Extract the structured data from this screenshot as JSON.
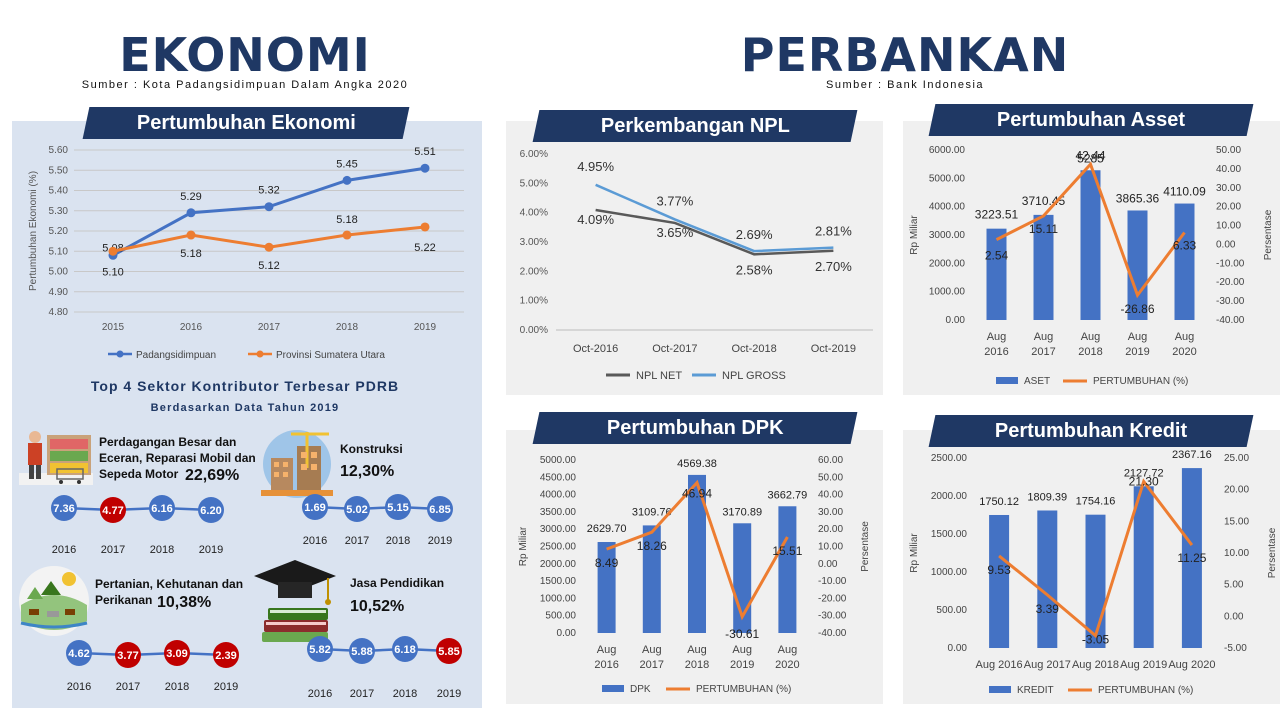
{
  "header": {
    "ekonomi_title": "EKONOMI",
    "ekonomi_source": "Sumber : Kota Padangsidimpuan Dalam Angka 2020",
    "perbankan_title": "PERBANKAN",
    "perbankan_source": "Sumber : Bank Indonesia"
  },
  "colors": {
    "dark_blue": "#1f3864",
    "bar_blue": "#4472c4",
    "orange": "#ed7d31",
    "red": "#c00000",
    "gray_line": "#595959",
    "light_blue_line": "#5b9bd5"
  },
  "pdrb": {
    "title": "Top 4 Sektor Kontributor Terbesar PDRB",
    "subtitle": "Berdasarkan Data Tahun 2019",
    "sectors": [
      {
        "name_lines": [
          "Perdagangan Besar dan",
          "Eceran, Reparasi Mobil dan",
          "Sepeda Motor"
        ],
        "share": "22,69%",
        "icon": "shop-icon",
        "years": [
          "2016",
          "2017",
          "2018",
          "2019"
        ],
        "values": [
          "7.36",
          "4.77",
          "6.16",
          "6.20"
        ],
        "low": [
          false,
          true,
          false,
          false
        ]
      },
      {
        "name_lines": [
          "Konstruksi"
        ],
        "share": "12,30%",
        "icon": "construction-icon",
        "years": [
          "2016",
          "2017",
          "2018",
          "2019"
        ],
        "values": [
          "1.69",
          "5.02",
          "5.15",
          "6.85"
        ],
        "low": [
          false,
          false,
          false,
          false
        ]
      },
      {
        "name_lines": [
          "Pertanian, Kehutanan dan",
          "Perikanan"
        ],
        "share": "10,38%",
        "icon": "farm-icon",
        "years": [
          "2016",
          "2017",
          "2018",
          "2019"
        ],
        "values": [
          "4.62",
          "3.77",
          "3.09",
          "2.39"
        ],
        "low": [
          false,
          true,
          true,
          true
        ]
      },
      {
        "name_lines": [
          "Jasa Pendidikan"
        ],
        "share": "10,52%",
        "icon": "graduation-cap-icon",
        "years": [
          "2016",
          "2017",
          "2018",
          "2019"
        ],
        "values": [
          "5.82",
          "5.88",
          "6.18",
          "5.85"
        ],
        "low": [
          false,
          false,
          false,
          true
        ]
      }
    ]
  },
  "chart_data": [
    {
      "id": "pertumbuhan-ekonomi",
      "type": "line",
      "title": "Pertumbuhan Ekonomi",
      "categories": [
        "2015",
        "2016",
        "2017",
        "2018",
        "2019"
      ],
      "ylabel": "Pertumbuhan Ekonomi (%)",
      "ylim": [
        4.8,
        5.6
      ],
      "yticks": [
        "4.80",
        "4.90",
        "5.00",
        "5.10",
        "5.20",
        "5.30",
        "5.40",
        "5.50",
        "5.60"
      ],
      "grid": true,
      "legend": "bottom",
      "series": [
        {
          "name": "Padangsidimpuan",
          "values": [
            5.08,
            5.29,
            5.32,
            5.45,
            5.51
          ],
          "labels": [
            "5.08",
            "5.29",
            "5.32",
            "5.45",
            "5.51"
          ],
          "color": "#4472c4"
        },
        {
          "name": "Provinsi Sumatera Utara",
          "values": [
            5.1,
            5.18,
            5.12,
            5.18,
            5.22
          ],
          "labels": [
            "5.10",
            "5.18",
            "5.12",
            "5.18",
            "5.22"
          ],
          "color": "#ed7d31"
        }
      ]
    },
    {
      "id": "perkembangan-npl",
      "type": "line",
      "title": "Perkembangan NPL",
      "categories": [
        "Oct-2016",
        "Oct-2017",
        "Oct-2018",
        "Oct-2019"
      ],
      "ylim": [
        0,
        6
      ],
      "yticks": [
        "0.00%",
        "1.00%",
        "2.00%",
        "3.00%",
        "4.00%",
        "5.00%",
        "6.00%"
      ],
      "grid": false,
      "legend": "bottom",
      "series": [
        {
          "name": "NPL NET",
          "values": [
            4.09,
            3.65,
            2.58,
            2.7
          ],
          "labels": [
            "4.09%",
            "3.65%",
            "2.58%",
            "2.70%"
          ],
          "color": "#595959"
        },
        {
          "name": "NPL GROSS",
          "values": [
            4.95,
            3.77,
            2.69,
            2.81
          ],
          "labels": [
            "4.95%",
            "3.77%",
            "2.69%",
            "2.81%"
          ],
          "color": "#5b9bd5"
        }
      ]
    },
    {
      "id": "pertumbuhan-asset",
      "type": "bar",
      "title": "Pertumbuhan Asset",
      "categories": [
        [
          "Aug",
          "2016"
        ],
        [
          "Aug",
          "2017"
        ],
        [
          "Aug",
          "2018"
        ],
        [
          "Aug",
          "2019"
        ],
        [
          "Aug",
          "2020"
        ]
      ],
      "ylabel": "Rp Miliar",
      "y2label": "Persentase",
      "ylim": [
        0,
        6000
      ],
      "yticks": [
        "0.00",
        "1000.00",
        "2000.00",
        "3000.00",
        "4000.00",
        "5000.00",
        "6000.00"
      ],
      "y2lim": [
        -40,
        50
      ],
      "y2ticks": [
        "-40.00",
        "-30.00",
        "-20.00",
        "-10.00",
        "0.00",
        "10.00",
        "20.00",
        "30.00",
        "40.00",
        "50.00"
      ],
      "legend": "bottom",
      "series": [
        {
          "name": "ASET",
          "values": [
            3223.51,
            3710.45,
            5285,
            3865.36,
            4110.09
          ],
          "labels": [
            "3223.51",
            "3710.45",
            "5285",
            "3865.36",
            "4110.09"
          ],
          "color": "#4472c4"
        },
        {
          "name": "PERTUMBUHAN (%)",
          "values": [
            2.54,
            15.11,
            42.44,
            -26.86,
            6.33
          ],
          "labels": [
            "2.54",
            "15.11",
            "42.44",
            "-26.86",
            "6.33"
          ],
          "color": "#ed7d31"
        }
      ]
    },
    {
      "id": "pertumbuhan-dpk",
      "type": "bar",
      "title": "Pertumbuhan DPK",
      "categories": [
        [
          "Aug",
          "2016"
        ],
        [
          "Aug",
          "2017"
        ],
        [
          "Aug",
          "2018"
        ],
        [
          "Aug",
          "2019"
        ],
        [
          "Aug",
          "2020"
        ]
      ],
      "ylabel": "Rp Miliar",
      "y2label": "Persentase",
      "ylim": [
        0,
        5000
      ],
      "yticks": [
        "0.00",
        "500.00",
        "1000.00",
        "1500.00",
        "2000.00",
        "2500.00",
        "3000.00",
        "3500.00",
        "4000.00",
        "4500.00",
        "5000.00"
      ],
      "y2lim": [
        -40,
        60
      ],
      "y2ticks": [
        "-40.00",
        "-30.00",
        "-20.00",
        "-10.00",
        "0.00",
        "10.00",
        "20.00",
        "30.00",
        "40.00",
        "50.00",
        "60.00"
      ],
      "legend": "bottom",
      "series": [
        {
          "name": "DPK",
          "values": [
            2629.7,
            3109.76,
            4569.38,
            3170.89,
            3662.79
          ],
          "labels": [
            "2629.70",
            "3109.76",
            "4569.38",
            "3170.89",
            "3662.79"
          ],
          "color": "#4472c4"
        },
        {
          "name": "PERTUMBUHAN (%)",
          "values": [
            8.49,
            18.26,
            46.94,
            -30.61,
            15.51
          ],
          "labels": [
            "8.49",
            "18.26",
            "46.94",
            "-30.61",
            "15.51"
          ],
          "color": "#ed7d31"
        }
      ]
    },
    {
      "id": "pertumbuhan-kredit",
      "type": "bar",
      "title": "Pertumbuhan Kredit",
      "categories": [
        [
          "Aug 2016"
        ],
        [
          "Aug 2017"
        ],
        [
          "Aug 2018"
        ],
        [
          "Aug 2019"
        ],
        [
          "Aug 2020"
        ]
      ],
      "ylabel": "Rp Miliar",
      "y2label": "Persentase",
      "ylim": [
        0,
        2500
      ],
      "yticks": [
        "0.00",
        "500.00",
        "1000.00",
        "1500.00",
        "2000.00",
        "2500.00"
      ],
      "y2lim": [
        -5,
        25
      ],
      "y2ticks": [
        "-5.00",
        "0.00",
        "5.00",
        "10.00",
        "15.00",
        "20.00",
        "25.00"
      ],
      "legend": "bottom",
      "series": [
        {
          "name": "KREDIT",
          "values": [
            1750.12,
            1809.39,
            1754.16,
            2127.72,
            2367.16
          ],
          "labels": [
            "1750.12",
            "1809.39",
            "1754.16",
            "2127.72",
            "2367.16"
          ],
          "color": "#4472c4"
        },
        {
          "name": "PERTUMBUHAN (%)",
          "values": [
            9.53,
            3.39,
            -3.05,
            21.3,
            11.25
          ],
          "labels": [
            "9.53",
            "3.39",
            "-3.05",
            "21.30",
            "11.25"
          ],
          "color": "#ed7d31"
        }
      ]
    }
  ]
}
